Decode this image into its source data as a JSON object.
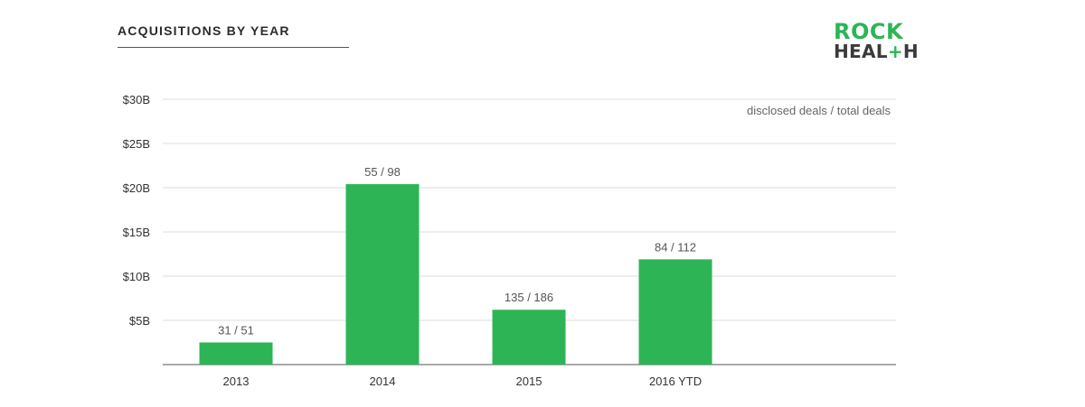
{
  "header": {
    "title": "ACQUISITIONS BY YEAR",
    "logo": {
      "line1": "ROCK",
      "line2_a": "HEAL",
      "line2_plus": "+",
      "line2_b": "H"
    }
  },
  "colors": {
    "bar": "#2db555",
    "grid": "#dddddd",
    "axis": "#555555"
  },
  "chart_data": {
    "type": "bar",
    "title": "ACQUISITIONS BY YEAR",
    "xlabel": "",
    "ylabel": "",
    "ylim": [
      0,
      30
    ],
    "yticks": [
      5,
      10,
      15,
      20,
      25,
      30
    ],
    "ytick_labels": [
      "$5B",
      "$10B",
      "$15B",
      "$20B",
      "$25B",
      "$30B"
    ],
    "grid": true,
    "categories": [
      "2013",
      "2014",
      "2015",
      "2016 YTD"
    ],
    "values": [
      2.5,
      20.4,
      6.2,
      11.9
    ],
    "data_labels": [
      "31 / 51",
      "55 / 98",
      "135 / 186",
      "84 / 112"
    ],
    "annotation": "disclosed deals / total deals"
  }
}
